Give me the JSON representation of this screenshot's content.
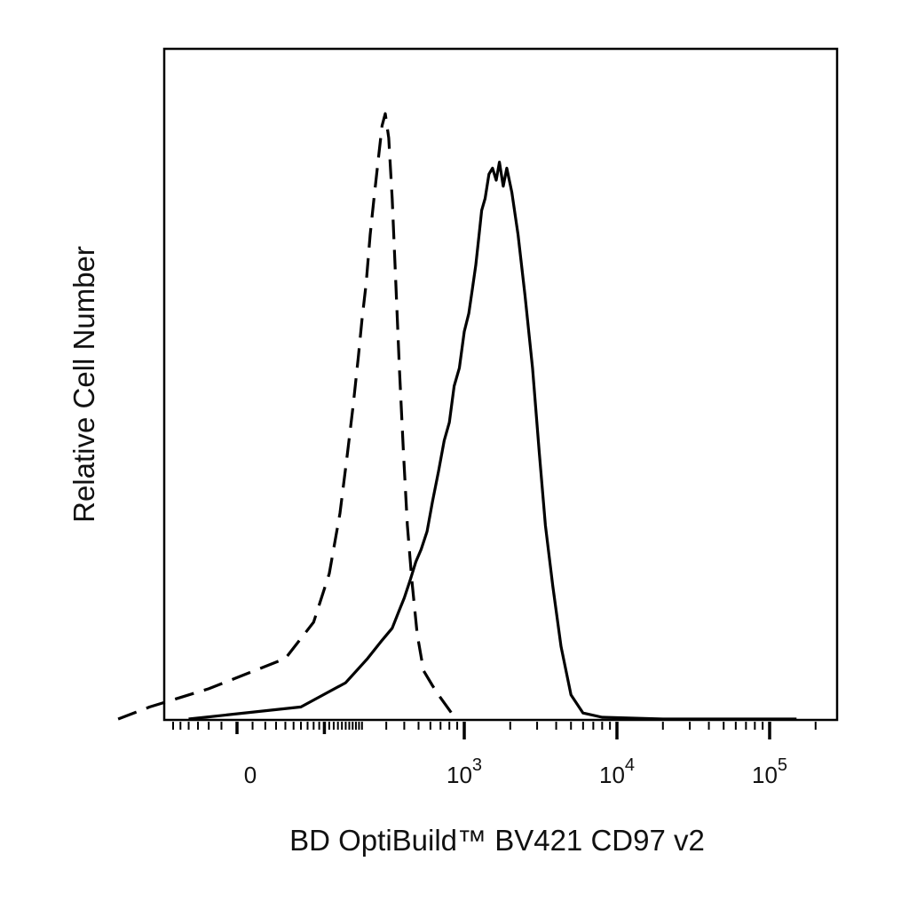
{
  "chart_data": {
    "type": "line",
    "title": "",
    "xlabel": "BD OptiBuild™ BV421 CD97 v2",
    "ylabel": "Relative Cell Number",
    "x_scale": "biexponential (log above ~10^2.5, linear near 0)",
    "xlim": [
      -200,
      180000
    ],
    "ylim": [
      0,
      1.08
    ],
    "grid": false,
    "legend": "none",
    "x_ticks": [
      {
        "value": 0,
        "base": "0",
        "exp": ""
      },
      {
        "value": 1000,
        "base": "10",
        "exp": "3"
      },
      {
        "value": 10000,
        "base": "10",
        "exp": "4"
      },
      {
        "value": 100000,
        "base": "10",
        "exp": "5"
      }
    ],
    "series": [
      {
        "style": "dashed",
        "color": "#000000",
        "points": [
          [
            -180,
            0.0
          ],
          [
            -100,
            0.02
          ],
          [
            -20,
            0.05
          ],
          [
            40,
            0.1
          ],
          [
            80,
            0.16
          ],
          [
            110,
            0.24
          ],
          [
            135,
            0.34
          ],
          [
            155,
            0.44
          ],
          [
            172,
            0.52
          ],
          [
            188,
            0.6
          ],
          [
            200,
            0.66
          ],
          [
            215,
            0.72
          ],
          [
            230,
            0.8
          ],
          [
            245,
            0.86
          ],
          [
            262,
            0.92
          ],
          [
            280,
            0.98
          ],
          [
            295,
            1.0
          ],
          [
            312,
            0.96
          ],
          [
            330,
            0.86
          ],
          [
            350,
            0.72
          ],
          [
            370,
            0.58
          ],
          [
            395,
            0.44
          ],
          [
            420,
            0.32
          ],
          [
            450,
            0.23
          ],
          [
            490,
            0.14
          ],
          [
            540,
            0.08
          ],
          [
            620,
            0.055
          ],
          [
            700,
            0.035
          ],
          [
            800,
            0.015
          ],
          [
            880,
            0.0
          ]
        ]
      },
      {
        "style": "solid",
        "color": "#000000",
        "points": [
          [
            -40,
            0.0
          ],
          [
            60,
            0.02
          ],
          [
            150,
            0.06
          ],
          [
            220,
            0.1
          ],
          [
            280,
            0.13
          ],
          [
            330,
            0.15
          ],
          [
            370,
            0.18
          ],
          [
            400,
            0.2
          ],
          [
            440,
            0.23
          ],
          [
            480,
            0.26
          ],
          [
            520,
            0.28
          ],
          [
            570,
            0.31
          ],
          [
            620,
            0.36
          ],
          [
            680,
            0.41
          ],
          [
            740,
            0.46
          ],
          [
            800,
            0.49
          ],
          [
            860,
            0.55
          ],
          [
            930,
            0.58
          ],
          [
            1000,
            0.64
          ],
          [
            1070,
            0.67
          ],
          [
            1130,
            0.71
          ],
          [
            1190,
            0.75
          ],
          [
            1250,
            0.8
          ],
          [
            1300,
            0.84
          ],
          [
            1370,
            0.86
          ],
          [
            1450,
            0.9
          ],
          [
            1530,
            0.91
          ],
          [
            1620,
            0.89
          ],
          [
            1700,
            0.92
          ],
          [
            1800,
            0.88
          ],
          [
            1900,
            0.91
          ],
          [
            2050,
            0.87
          ],
          [
            2250,
            0.8
          ],
          [
            2500,
            0.7
          ],
          [
            2800,
            0.58
          ],
          [
            3100,
            0.44
          ],
          [
            3400,
            0.32
          ],
          [
            3800,
            0.22
          ],
          [
            4300,
            0.12
          ],
          [
            5000,
            0.04
          ],
          [
            6000,
            0.01
          ],
          [
            8000,
            0.003
          ],
          [
            20000,
            0.0
          ],
          [
            100000,
            0.0
          ],
          [
            150000,
            0.0
          ]
        ]
      }
    ]
  }
}
